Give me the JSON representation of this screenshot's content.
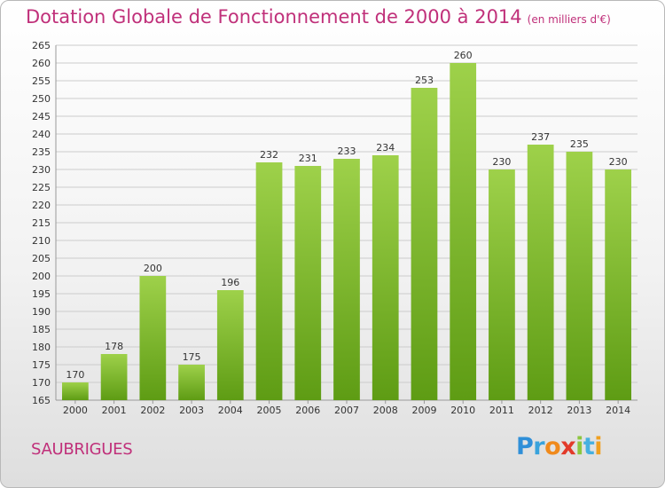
{
  "header": {
    "title": "Dotation Globale de Fonctionnement de 2000 à 2014",
    "unit": "(en milliers d'€)"
  },
  "footer": {
    "place": "SAUBRIGUES",
    "logo": "Proxiti"
  },
  "colors": {
    "accent": "#c0307a",
    "bar_top": "#9ed14a",
    "bar_bottom": "#5e9c14",
    "grid": "#cccccc"
  },
  "chart_data": {
    "type": "bar",
    "title": "Dotation Globale de Fonctionnement de 2000 à 2014",
    "xlabel": "",
    "ylabel": "",
    "categories": [
      "2000",
      "2001",
      "2002",
      "2003",
      "2004",
      "2005",
      "2006",
      "2007",
      "2008",
      "2009",
      "2010",
      "2011",
      "2012",
      "2013",
      "2014"
    ],
    "values": [
      170,
      178,
      200,
      175,
      196,
      232,
      231,
      233,
      234,
      253,
      260,
      230,
      237,
      235,
      230
    ],
    "ylim": [
      165,
      265
    ],
    "ytick_step": 5,
    "grid": true,
    "data_labels": true
  }
}
